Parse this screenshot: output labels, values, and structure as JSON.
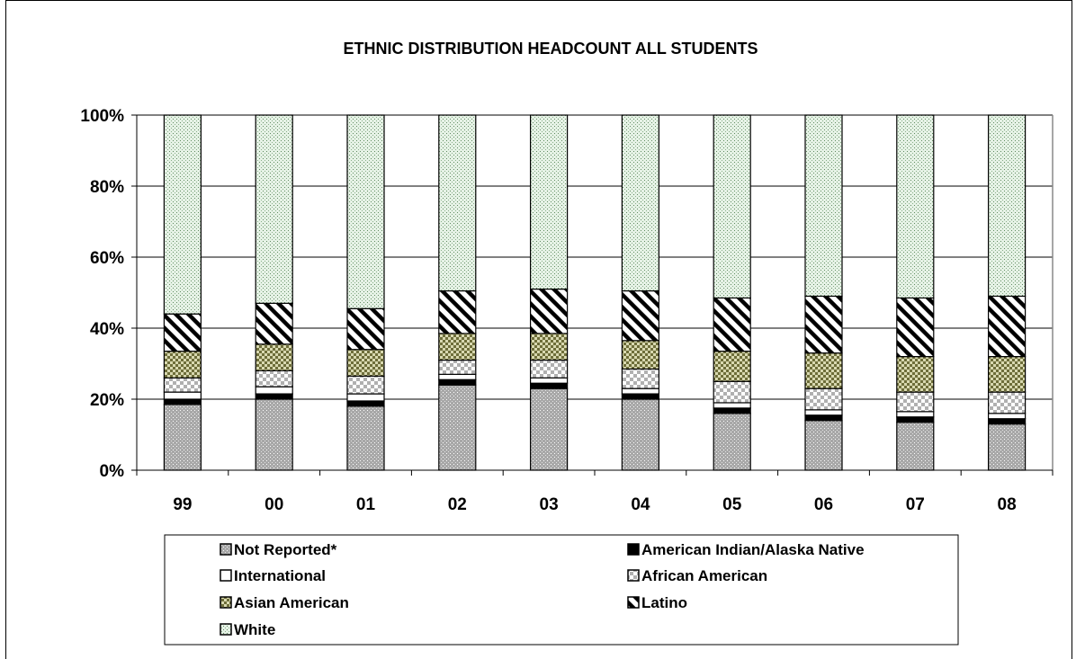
{
  "chart_data": {
    "type": "bar",
    "stacked": true,
    "normalized": true,
    "title": "ETHNIC DISTRIBUTION HEADCOUNT ALL STUDENTS",
    "xlabel": "",
    "ylabel": "",
    "ylim": [
      0,
      100
    ],
    "yticks": [
      "0%",
      "20%",
      "40%",
      "60%",
      "80%",
      "100%"
    ],
    "categories": [
      "99",
      "00",
      "01",
      "02",
      "03",
      "04",
      "05",
      "06",
      "07",
      "08"
    ],
    "legend_position": "bottom",
    "grid": true,
    "series": [
      {
        "name": "Not Reported*",
        "pattern": "dots-gray",
        "color": "#9a9a9a",
        "values": [
          18.5,
          20,
          18,
          24,
          23,
          20,
          16,
          14,
          13.5,
          13
        ]
      },
      {
        "name": "American Indian/Alaska Native",
        "pattern": "solid-black",
        "color": "#000000",
        "values": [
          1.5,
          1.5,
          1.5,
          1.5,
          1.5,
          1.5,
          1.5,
          1.5,
          1.5,
          1.5
        ]
      },
      {
        "name": "International",
        "pattern": "white",
        "color": "#ffffff",
        "values": [
          2,
          2,
          2,
          1.5,
          1.5,
          1.5,
          1.5,
          1.5,
          1.5,
          1.5
        ]
      },
      {
        "name": "African American",
        "pattern": "checker",
        "color": "#d0d0d0",
        "values": [
          4,
          4.5,
          5,
          4,
          5,
          5.5,
          6,
          6,
          5.5,
          6
        ]
      },
      {
        "name": "Asian American",
        "pattern": "checker-olive",
        "color": "#8a8a55",
        "values": [
          7.5,
          7.5,
          7.5,
          7.5,
          7.5,
          8,
          8.5,
          10,
          10,
          10
        ]
      },
      {
        "name": "Latino",
        "pattern": "diagonal",
        "color": "#000000",
        "values": [
          10.5,
          11.5,
          11.5,
          12,
          12.5,
          14,
          15,
          16,
          16.5,
          17
        ]
      },
      {
        "name": "White",
        "pattern": "dots-green",
        "color": "#c8e0c8",
        "values": [
          56,
          53,
          54.5,
          49.5,
          49,
          49.5,
          51.5,
          51,
          51.5,
          51
        ]
      }
    ]
  }
}
